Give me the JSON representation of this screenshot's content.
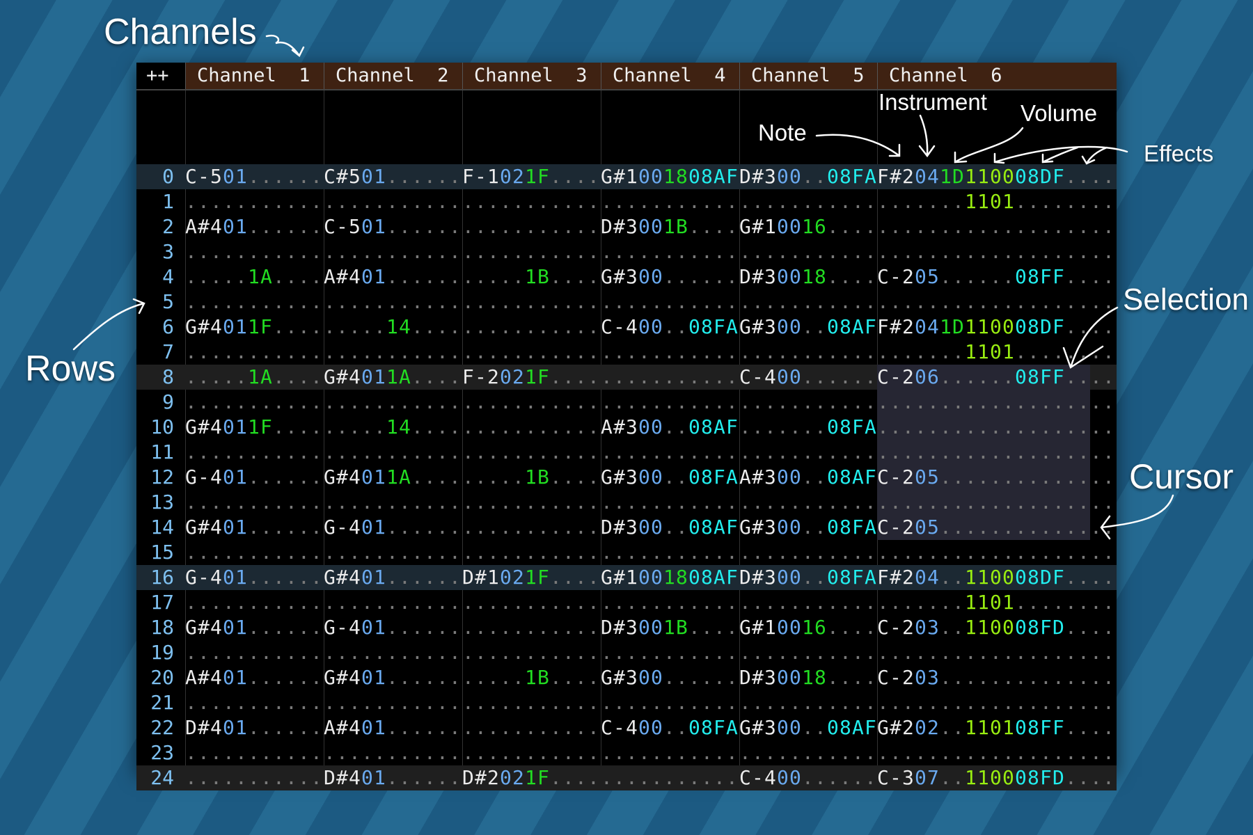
{
  "header": {
    "corner": "++",
    "channels": [
      "Channel  1",
      "Channel  2",
      "Channel  3",
      "Channel  4",
      "Channel  5",
      "Channel  6"
    ]
  },
  "colors": {
    "note": "#ececec",
    "instrument": "#6aaaf0",
    "volume": "#22dd22",
    "effect_08": "#22eeee",
    "effect_11": "#99ee11",
    "dot": "#7a7a7a",
    "row_number": "#7ec0f0",
    "header_bg": "#3f2212",
    "selection": "#262633",
    "cursor": "#1d4a7a"
  },
  "rows": [
    {
      "n": "0",
      "cells": [
        "C-501......",
        "C#501......",
        "F-1021F....",
        "G#1001808AF",
        "D#300..08FA",
        "F#2041D110008DF...."
      ]
    },
    {
      "n": "1",
      "cells": [
        "...........",
        "...........",
        "...........",
        "...........",
        "...........",
        ".......1101........"
      ]
    },
    {
      "n": "2",
      "cells": [
        "A#401......",
        "C-501......",
        "...........",
        "D#3001B....",
        "G#10016....",
        "..................."
      ]
    },
    {
      "n": "3",
      "cells": [
        "...........",
        "...........",
        "...........",
        "...........",
        "...........",
        "..................."
      ]
    },
    {
      "n": "4",
      "cells": [
        ".....1A....",
        "A#401......",
        ".....1B....",
        "G#300......",
        "D#30018....",
        "C-205......08FF...."
      ]
    },
    {
      "n": "5",
      "cells": [
        "...........",
        "...........",
        "...........",
        "...........",
        "...........",
        "..................."
      ]
    },
    {
      "n": "6",
      "cells": [
        "G#4011F....",
        ".....14....",
        "...........",
        "C-400..08FA",
        "G#300..08AF",
        "F#2041D110008DF...."
      ]
    },
    {
      "n": "7",
      "cells": [
        "...........",
        "...........",
        "...........",
        "...........",
        "...........",
        ".......1101........"
      ]
    },
    {
      "n": "8",
      "cells": [
        ".....1A....",
        "G#4011A....",
        "F-2021F....",
        "...........",
        "C-400......",
        "C-206......08FF...."
      ]
    },
    {
      "n": "9",
      "cells": [
        "...........",
        "...........",
        "...........",
        "...........",
        "...........",
        "..................."
      ]
    },
    {
      "n": "10",
      "cells": [
        "G#4011F....",
        ".....14....",
        "...........",
        "A#300..08AF",
        ".......08FA",
        "..................."
      ]
    },
    {
      "n": "11",
      "cells": [
        "...........",
        "...........",
        "...........",
        "...........",
        "...........",
        "..................."
      ]
    },
    {
      "n": "12",
      "cells": [
        "G-401......",
        "G#4011A....",
        ".....1B....",
        "G#300..08FA",
        "A#300..08AF",
        "C-205.............."
      ]
    },
    {
      "n": "13",
      "cells": [
        "...........",
        "...........",
        "...........",
        "...........",
        "...........",
        "..................."
      ]
    },
    {
      "n": "14",
      "cells": [
        "G#401......",
        "G-401......",
        "...........",
        "D#300..08AF",
        "G#300..08FA",
        "C-205.............."
      ]
    },
    {
      "n": "15",
      "cells": [
        "...........",
        "...........",
        "...........",
        "...........",
        "...........",
        "..................."
      ]
    },
    {
      "n": "16",
      "cells": [
        "G-401......",
        "G#401......",
        "D#1021F....",
        "G#1001808AF",
        "D#300..08FA",
        "F#204..110008DF...."
      ]
    },
    {
      "n": "17",
      "cells": [
        "...........",
        "...........",
        "...........",
        "...........",
        "...........",
        ".......1101........"
      ]
    },
    {
      "n": "18",
      "cells": [
        "G#401......",
        "G-401......",
        "...........",
        "D#3001B....",
        "G#10016....",
        "C-203..110008FD...."
      ]
    },
    {
      "n": "19",
      "cells": [
        "...........",
        "...........",
        "...........",
        "...........",
        "...........",
        "..................."
      ]
    },
    {
      "n": "20",
      "cells": [
        "A#401......",
        "G#401......",
        ".....1B....",
        "G#300......",
        "D#30018....",
        "C-203.............."
      ]
    },
    {
      "n": "21",
      "cells": [
        "...........",
        "...........",
        "...........",
        "...........",
        "...........",
        "..................."
      ]
    },
    {
      "n": "22",
      "cells": [
        "D#401......",
        "A#401......",
        "...........",
        "C-400..08FA",
        "G#300..08AF",
        "G#202..110108FF...."
      ]
    },
    {
      "n": "23",
      "cells": [
        "...........",
        "...........",
        "...........",
        "...........",
        "...........",
        "..................."
      ]
    },
    {
      "n": "24",
      "cells": [
        "...........",
        "D#401......",
        "D#2021F....",
        "...........",
        "C-400......",
        "C-307..110008FD...."
      ]
    }
  ],
  "highlight_rows": {
    "blue": [
      "0",
      "16"
    ],
    "gray": [
      "8",
      "24"
    ]
  },
  "selection": {
    "channel": 6,
    "from_row": 8,
    "to_row": 14
  },
  "cursor": {
    "channel": 6,
    "row": 14,
    "column": "effect 3"
  },
  "annotations": {
    "channels": "Channels",
    "rows": "Rows",
    "note": "Note",
    "instrument": "Instrument",
    "volume": "Volume",
    "effects": "Effects",
    "selection": "Selection",
    "cursor": "Cursor"
  }
}
